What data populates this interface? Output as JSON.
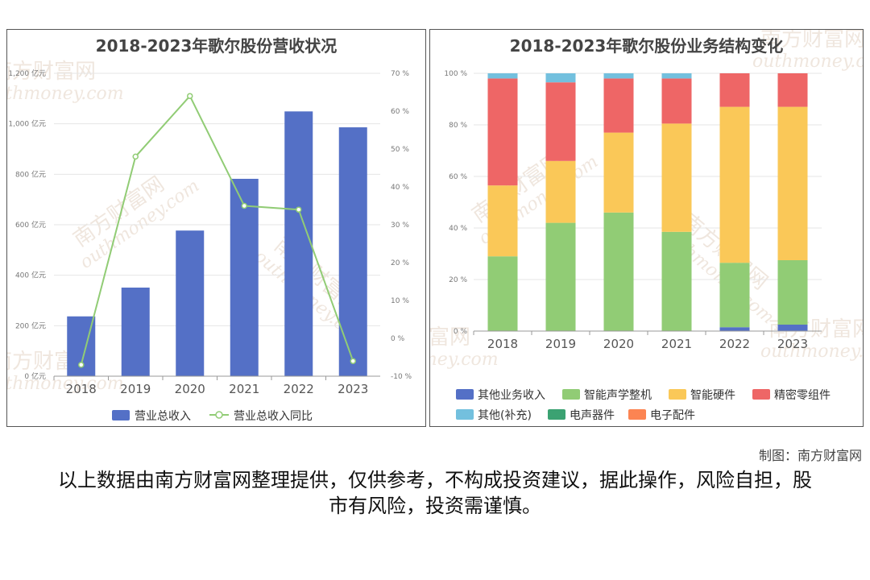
{
  "chart_data": [
    {
      "type": "bar",
      "title": "2018-2023年歌尔股份营收状况",
      "categories": [
        "2018",
        "2019",
        "2020",
        "2021",
        "2022",
        "2023"
      ],
      "y_left": {
        "min": 0,
        "max": 1200,
        "ticks": [
          "0 亿元",
          "200 亿元",
          "400 亿元",
          "600 亿元",
          "800 亿元",
          "1,000 亿元",
          "1,200 亿元"
        ]
      },
      "y_right": {
        "min": -10,
        "max": 70,
        "ticks": [
          "-10 %",
          "0 %",
          "10 %",
          "20 %",
          "30 %",
          "40 %",
          "50 %",
          "60 %",
          "70 %"
        ]
      },
      "series": [
        {
          "name": "营业总收入",
          "kind": "bar",
          "axis": "left",
          "color": "#5470c6",
          "values": [
            237,
            351,
            577,
            782,
            1049,
            986
          ]
        },
        {
          "name": "营业总收入同比",
          "kind": "line",
          "axis": "right",
          "color": "#91cc75",
          "values": [
            -7,
            48,
            64,
            35,
            34,
            -6
          ]
        }
      ],
      "legend_position": "bottom",
      "grid": true
    },
    {
      "type": "bar",
      "stacked": true,
      "title": "2018-2023年歌尔股份业务结构变化",
      "categories": [
        "2018",
        "2019",
        "2020",
        "2021",
        "2022",
        "2023"
      ],
      "y": {
        "min": 0,
        "max": 100,
        "ticks": [
          "0 %",
          "20 %",
          "40 %",
          "60 %",
          "80 %",
          "100 %"
        ]
      },
      "series": [
        {
          "name": "其他业务收入",
          "color": "#5470c6",
          "values": [
            0,
            0,
            0,
            0,
            1.5,
            2.5
          ]
        },
        {
          "name": "智能声学整机",
          "color": "#91cc75",
          "values": [
            29,
            42,
            46,
            38.5,
            25,
            25
          ]
        },
        {
          "name": "智能硬件",
          "color": "#fac858",
          "values": [
            27.5,
            24,
            31,
            42,
            60.5,
            59.5
          ]
        },
        {
          "name": "精密零组件",
          "color": "#ee6666",
          "values": [
            41.5,
            30.5,
            21,
            17.5,
            13,
            13
          ]
        },
        {
          "name": "其他(补充)",
          "color": "#73c0de",
          "values": [
            2,
            3.5,
            2,
            2,
            0,
            0
          ]
        },
        {
          "name": "电声器件",
          "color": "#3ba272",
          "values": [
            0,
            0,
            0,
            0,
            0,
            0
          ]
        },
        {
          "name": "电子配件",
          "color": "#fc8452",
          "values": [
            0,
            0,
            0,
            0,
            0,
            0
          ]
        }
      ],
      "legend_position": "bottom",
      "grid": true
    }
  ],
  "watermark": {
    "cn": "南方财富网",
    "en": "outhmoney.com",
    "color": "#c9a98a"
  },
  "footer": {
    "credit": "制图：南方财富网",
    "disclaimer": "以上数据由南方财富网整理提供，仅供参考，不构成投资建议，据此操作，风险自担，股市有风险，投资需谨慎。"
  }
}
